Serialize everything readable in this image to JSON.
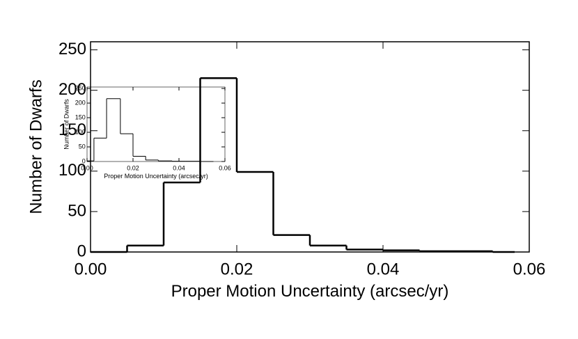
{
  "chart_data": [
    {
      "type": "histogram",
      "xlabel": "Proper Motion Uncertainty (arcsec/yr)",
      "ylabel": "Number of Dwarfs",
      "bins": [
        0,
        0.005,
        0.01,
        0.015,
        0.02,
        0.025,
        0.03,
        0.035,
        0.04,
        0.045,
        0.05,
        0.055,
        0.058
      ],
      "values": [
        0,
        8,
        86,
        215,
        99,
        21,
        8,
        3,
        2,
        1,
        1,
        0
      ],
      "color": "#000000",
      "xlim": [
        0,
        0.06
      ],
      "ylim": [
        0,
        260
      ],
      "xticks": [
        {
          "value": 0,
          "label": "0.00"
        },
        0.02,
        0.04,
        0.06
      ],
      "yticks": [
        0,
        50,
        100,
        150,
        200,
        250
      ]
    },
    {
      "type": "histogram",
      "xlabel": "Proper Motion Uncertainty (arcsec/yr)",
      "ylabel": "Number of Dwarfs",
      "bins": [
        0,
        0.003,
        0.0085,
        0.0145,
        0.02,
        0.0255,
        0.031,
        0.037,
        0.043,
        0.049,
        0.055
      ],
      "values": [
        2,
        80,
        215,
        95,
        18,
        5,
        2,
        1,
        1,
        0
      ],
      "color": "#000000",
      "xlim": [
        0,
        0.06
      ],
      "ylim": [
        0,
        255
      ],
      "xticks": [
        {
          "value": 0,
          "label": "0.00"
        },
        0.02,
        0.04,
        0.06
      ],
      "yticks": [
        0,
        50,
        100,
        150,
        200,
        250
      ]
    }
  ]
}
